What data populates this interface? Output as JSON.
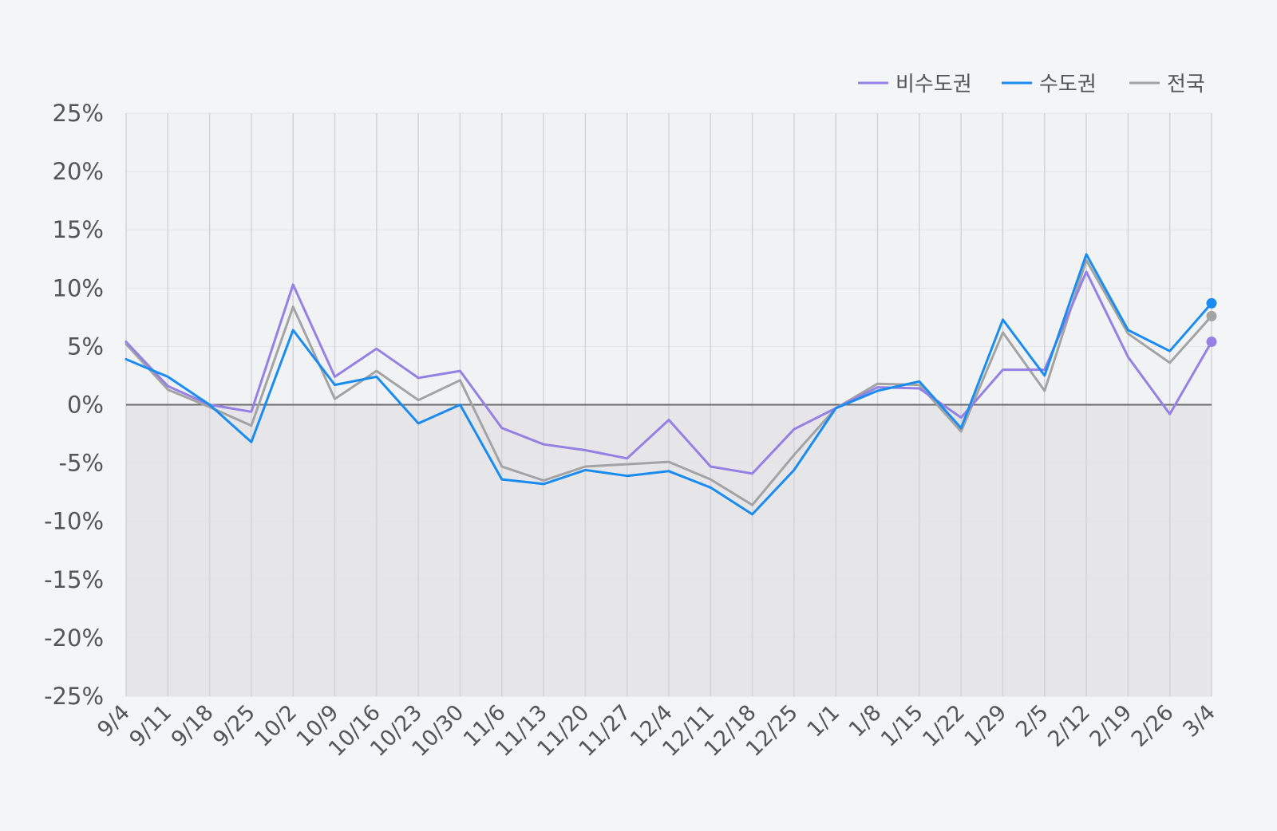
{
  "chart_data": {
    "type": "line",
    "title": "",
    "xlabel": "",
    "ylabel": "",
    "ylim": [
      -25,
      25
    ],
    "yticks": [
      25,
      20,
      15,
      10,
      5,
      0,
      -5,
      -10,
      -15,
      -20,
      -25
    ],
    "ytick_labels": [
      "25%",
      "20%",
      "15%",
      "10%",
      "5%",
      "0%",
      "-5%",
      "-10%",
      "-15%",
      "-20%",
      "-25%"
    ],
    "categories": [
      "9/4",
      "9/11",
      "9/18",
      "9/25",
      "10/2",
      "10/9",
      "10/16",
      "10/23",
      "10/30",
      "11/6",
      "11/13",
      "11/20",
      "11/27",
      "12/4",
      "12/11",
      "12/18",
      "12/25",
      "1/1",
      "1/8",
      "1/15",
      "1/22",
      "1/29",
      "2/5",
      "2/12",
      "2/19",
      "2/26",
      "3/4"
    ],
    "grid": true,
    "negative_region_shaded": true,
    "legend_position": "top-right",
    "series": [
      {
        "name": "비수도권",
        "color": "#9580e3",
        "values": [
          5.4,
          1.6,
          0.0,
          -0.6,
          10.3,
          2.4,
          4.8,
          2.3,
          2.9,
          -2.0,
          -3.4,
          -3.9,
          -4.6,
          -1.3,
          -5.3,
          -5.9,
          -2.1,
          -0.3,
          1.5,
          1.4,
          -1.1,
          3.0,
          3.0,
          11.4,
          4.1,
          -0.8,
          5.4
        ]
      },
      {
        "name": "수도권",
        "color": "#1a8cf0",
        "values": [
          3.9,
          2.4,
          0.0,
          -3.2,
          6.4,
          1.7,
          2.4,
          -1.6,
          0.0,
          -6.4,
          -6.8,
          -5.6,
          -6.1,
          -5.7,
          -7.1,
          -9.4,
          -5.6,
          -0.3,
          1.2,
          2.0,
          -2.0,
          7.3,
          2.5,
          12.9,
          6.4,
          4.6,
          8.7
        ]
      },
      {
        "name": "전국",
        "color": "#a3a3a3",
        "values": [
          5.2,
          1.3,
          -0.2,
          -1.8,
          8.4,
          0.5,
          2.9,
          0.4,
          2.1,
          -5.3,
          -6.5,
          -5.3,
          -5.1,
          -4.9,
          -6.4,
          -8.6,
          -4.3,
          -0.3,
          1.8,
          1.7,
          -2.3,
          6.2,
          1.2,
          12.4,
          6.1,
          3.6,
          7.6
        ]
      }
    ]
  }
}
